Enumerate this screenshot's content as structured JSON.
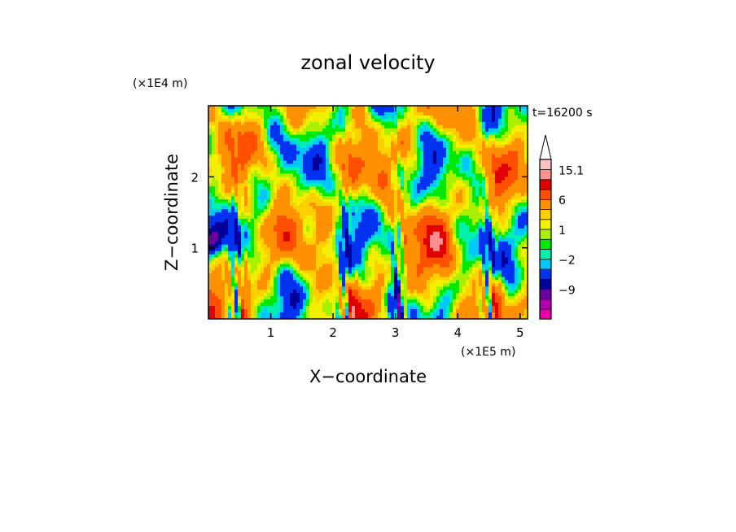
{
  "chart_data": {
    "type": "heatmap",
    "title": "zonal velocity",
    "xlabel": "X−coordinate",
    "ylabel": "Z−coordinate",
    "x_scale_label": "(×1E5 m)",
    "y_scale_label": "(×1E4 m)",
    "time_label": "t=16200 s",
    "xlim": [
      0,
      5.12
    ],
    "ylim": [
      0,
      3.0
    ],
    "x_ticks": [
      1,
      2,
      3,
      4,
      5
    ],
    "x_tick_labels": [
      "1",
      "2",
      "3",
      "4",
      "5"
    ],
    "y_ticks": [
      1,
      2
    ],
    "y_tick_labels": [
      "1",
      "2"
    ],
    "colorbar": {
      "levels": [
        -15,
        -12,
        -9,
        -6,
        -3,
        -2,
        -1,
        0,
        1,
        2,
        3,
        6,
        9,
        12,
        15.1
      ],
      "labels": [
        {
          "value": 15.1,
          "text": "15.1"
        },
        {
          "value": 6,
          "text": "6"
        },
        {
          "value": 1,
          "text": "1"
        },
        {
          "value": -2,
          "text": "−2"
        },
        {
          "value": -9,
          "text": "−9"
        }
      ],
      "colors": [
        "#e800a8",
        "#b000b0",
        "#6a009e",
        "#00009a",
        "#0032f0",
        "#00c8ff",
        "#00f0b0",
        "#00e800",
        "#a8f000",
        "#f0f000",
        "#ffd000",
        "#ff9000",
        "#ff5000",
        "#e00000",
        "#ff9090",
        "#ffc0c0"
      ],
      "extend_max": true
    }
  }
}
